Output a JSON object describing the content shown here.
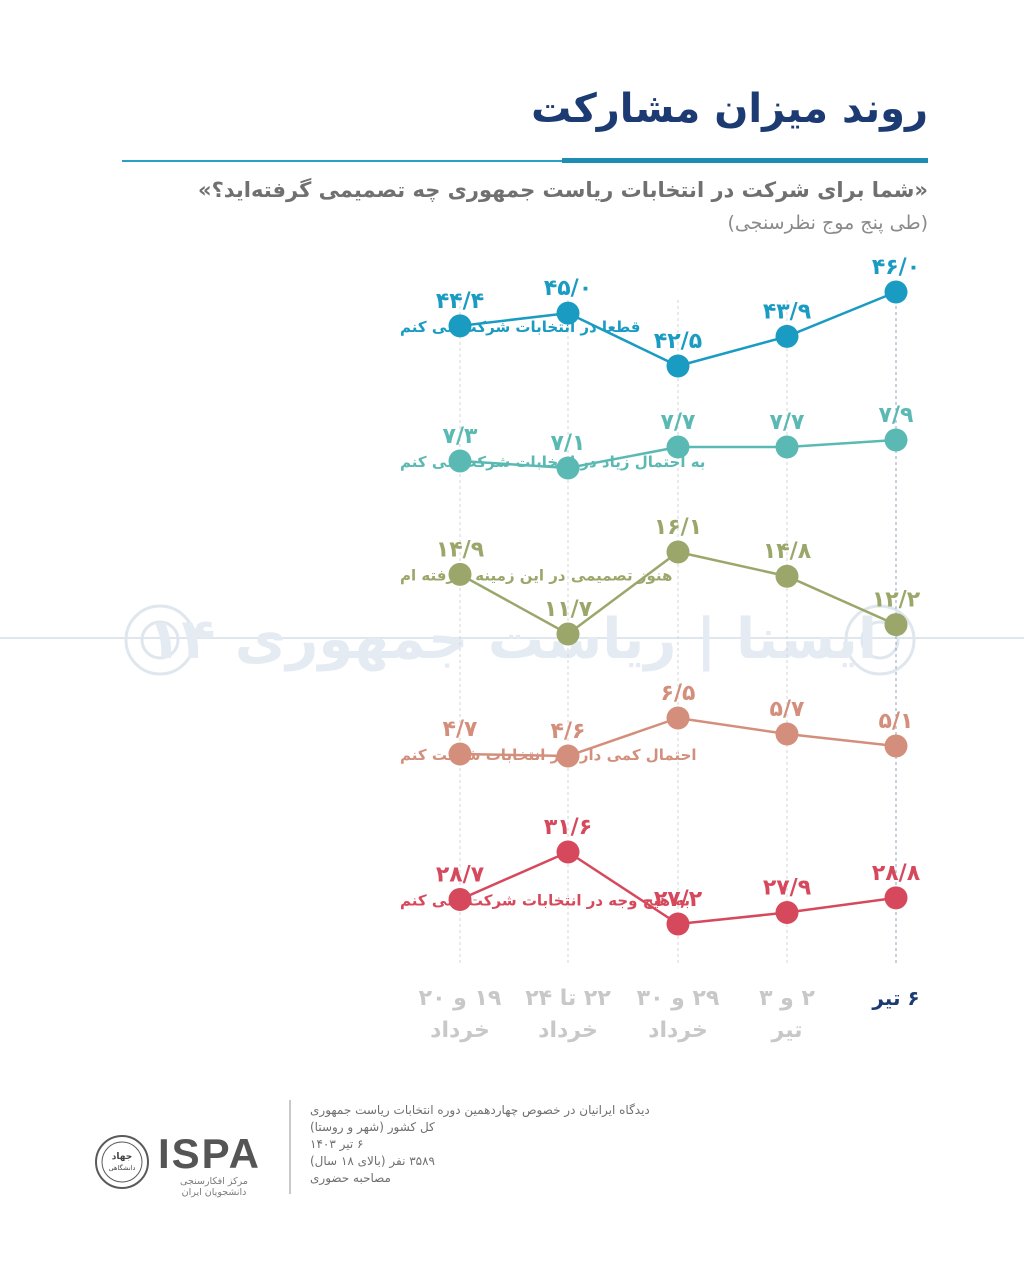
{
  "header": {
    "title": "روند میزان مشارکت",
    "question": "«شما برای شرکت در انتخابات ریاست جمهوری چه تصمیمی گرفته‌اید؟»",
    "note": "(طی پنج موج نظرسنجی)"
  },
  "chart_data": {
    "type": "line",
    "categories": [
      {
        "line1": "۱۹ و ۲۰",
        "line2": "خرداد"
      },
      {
        "line1": "۲۲ تا ۲۴",
        "line2": "خرداد"
      },
      {
        "line1": "۲۹ و ۳۰",
        "line2": "خرداد"
      },
      {
        "line1": "۲ و ۳",
        "line2": "تیر"
      },
      {
        "line1": "۶ تیر",
        "line2": ""
      }
    ],
    "highlight_category": 4,
    "series": [
      {
        "name": "قطعا در انتخابات شرکت می کنم",
        "color": "#1a9bc2",
        "values": [
          44.4,
          45.0,
          42.5,
          43.9,
          46.0
        ],
        "labels": [
          "۴۴/۴",
          "۴۵/۰",
          "۴۲/۵",
          "۴۳/۹",
          "۴۶/۰"
        ]
      },
      {
        "name": "به احتمال زیاد در انتخابات شرکت می کنم",
        "color": "#5bb9b3",
        "values": [
          7.3,
          7.1,
          7.7,
          7.7,
          7.9
        ],
        "labels": [
          "۷/۳",
          "۷/۱",
          "۷/۷",
          "۷/۷",
          "۷/۹"
        ]
      },
      {
        "name": "هنوز تصمیمی در این زمینه نگرفته ام",
        "color": "#9ba76a",
        "values": [
          14.9,
          11.7,
          16.1,
          14.8,
          12.2
        ],
        "labels": [
          "۱۴/۹",
          "۱۱/۷",
          "۱۶/۱",
          "۱۴/۸",
          "۱۲/۲"
        ]
      },
      {
        "name": "احتمال کمی دارد در انتخابات شرکت کنم",
        "color": "#d48f7c",
        "values": [
          4.7,
          4.6,
          6.5,
          5.7,
          5.1
        ],
        "labels": [
          "۴/۷",
          "۴/۶",
          "۶/۵",
          "۵/۷",
          "۵/۱"
        ]
      },
      {
        "name": "به هیچ وجه در انتخابات شرکت نمی کنم",
        "color": "#d6495c",
        "values": [
          28.7,
          31.6,
          27.2,
          27.9,
          28.8
        ],
        "labels": [
          "۲۸/۷",
          "۳۱/۶",
          "۲۷/۲",
          "۲۷/۹",
          "۲۸/۸"
        ]
      }
    ]
  },
  "watermark": {
    "text": "ایسنا | ریاست جمهوری ۱۴"
  },
  "footer": {
    "lines": [
      "دیدگاه ایرانیان در خصوص چهاردهمین دوره انتخابات ریاست جمهوری",
      "کل کشور (شهر و روستا)",
      "۶ تیر ۱۴۰۳",
      "۳۵۸۹ نفر (بالای ۱۸ سال)",
      "مصاحبه حضوری"
    ],
    "logo_seal_text": "جهاد دانشگاهی",
    "logo_name": "ISPA",
    "logo_subtitle": "مرکز افکارسنجی دانشجویان ایران"
  },
  "colors": {
    "title": "#1d3b73",
    "accent": "#1e8db3",
    "axis_label": "#c8c8c8",
    "axis_label_highlight": "#1d3b73"
  }
}
